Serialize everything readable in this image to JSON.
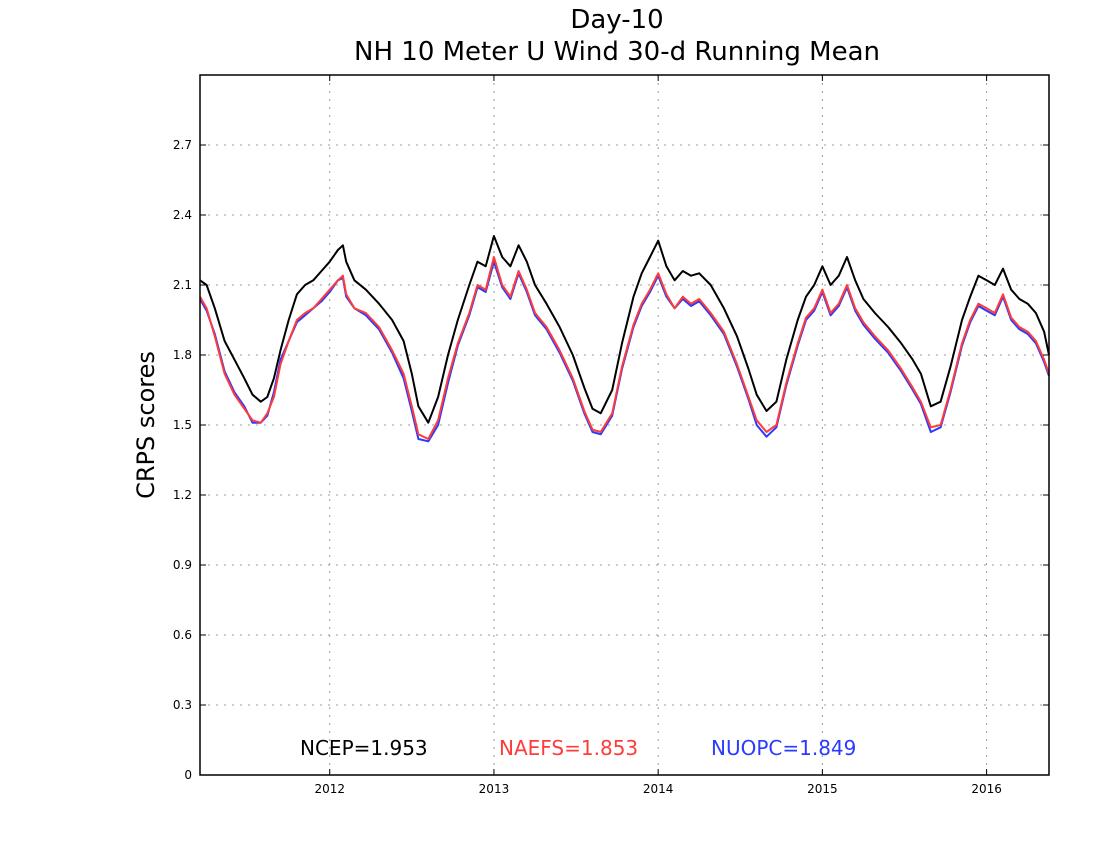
{
  "chart_data": {
    "type": "line",
    "title": "Day-10",
    "subtitle": "NH 10 Meter U Wind 30-d Running Mean",
    "xlabel": "",
    "ylabel": "CRPS scores",
    "xlim": [
      2011.21,
      2016.38
    ],
    "ylim": [
      0,
      3.0
    ],
    "yticks": [
      0,
      0.3,
      0.6,
      0.9,
      1.2,
      1.5,
      1.8,
      2.1,
      2.4,
      2.7
    ],
    "ytick_labels": [
      "0",
      "0.3",
      "0.6",
      "0.9",
      "1.2",
      "1.5",
      "1.8",
      "2.1",
      "2.4",
      "2.7"
    ],
    "xticks": [
      2012,
      2013,
      2014,
      2015,
      2016
    ],
    "xtick_labels": [
      "2012",
      "2013",
      "2014",
      "2015",
      "2016"
    ],
    "grid": true,
    "legend_position": "bottom-inside",
    "series": [
      {
        "name": "NCEP",
        "legend": "NCEP=1.953",
        "color": "#000000",
        "x": [
          2011.21,
          2011.25,
          2011.3,
          2011.36,
          2011.42,
          2011.48,
          2011.53,
          2011.58,
          2011.62,
          2011.66,
          2011.7,
          2011.75,
          2011.8,
          2011.85,
          2011.9,
          2011.95,
          2012.0,
          2012.05,
          2012.08,
          2012.1,
          2012.15,
          2012.22,
          2012.3,
          2012.38,
          2012.45,
          2012.5,
          2012.54,
          2012.6,
          2012.66,
          2012.72,
          2012.78,
          2012.85,
          2012.9,
          2012.95,
          2013.0,
          2013.05,
          2013.1,
          2013.15,
          2013.2,
          2013.25,
          2013.32,
          2013.4,
          2013.48,
          2013.55,
          2013.6,
          2013.65,
          2013.72,
          2013.78,
          2013.85,
          2013.9,
          2013.95,
          2014.0,
          2014.05,
          2014.1,
          2014.15,
          2014.2,
          2014.25,
          2014.32,
          2014.4,
          2014.48,
          2014.55,
          2014.6,
          2014.66,
          2014.72,
          2014.78,
          2014.85,
          2014.9,
          2014.95,
          2015.0,
          2015.05,
          2015.1,
          2015.15,
          2015.2,
          2015.25,
          2015.32,
          2015.4,
          2015.48,
          2015.55,
          2015.6,
          2015.66,
          2015.72,
          2015.78,
          2015.85,
          2015.9,
          2015.95,
          2016.0,
          2016.05,
          2016.1,
          2016.15,
          2016.2,
          2016.25,
          2016.3,
          2016.35,
          2016.38
        ],
        "values": [
          2.12,
          2.1,
          2.0,
          1.86,
          1.78,
          1.7,
          1.63,
          1.6,
          1.62,
          1.7,
          1.82,
          1.95,
          2.06,
          2.1,
          2.12,
          2.16,
          2.2,
          2.25,
          2.27,
          2.2,
          2.12,
          2.08,
          2.02,
          1.95,
          1.86,
          1.72,
          1.58,
          1.51,
          1.62,
          1.8,
          1.95,
          2.1,
          2.2,
          2.18,
          2.31,
          2.22,
          2.18,
          2.27,
          2.2,
          2.1,
          2.02,
          1.92,
          1.8,
          1.66,
          1.57,
          1.55,
          1.65,
          1.85,
          2.05,
          2.15,
          2.22,
          2.29,
          2.18,
          2.12,
          2.16,
          2.14,
          2.15,
          2.1,
          2.0,
          1.88,
          1.74,
          1.63,
          1.56,
          1.6,
          1.78,
          1.95,
          2.05,
          2.1,
          2.18,
          2.1,
          2.14,
          2.22,
          2.12,
          2.04,
          1.98,
          1.92,
          1.85,
          1.78,
          1.72,
          1.58,
          1.6,
          1.75,
          1.95,
          2.05,
          2.14,
          2.12,
          2.1,
          2.17,
          2.08,
          2.04,
          2.02,
          1.98,
          1.9,
          1.8
        ]
      },
      {
        "name": "NAEFS",
        "legend": "NAEFS=1.853",
        "color": "#ff3b3b",
        "x": [
          2011.21,
          2011.25,
          2011.3,
          2011.36,
          2011.42,
          2011.48,
          2011.53,
          2011.58,
          2011.62,
          2011.66,
          2011.7,
          2011.75,
          2011.8,
          2011.85,
          2011.9,
          2011.95,
          2012.0,
          2012.05,
          2012.08,
          2012.1,
          2012.15,
          2012.22,
          2012.3,
          2012.38,
          2012.45,
          2012.5,
          2012.54,
          2012.6,
          2012.66,
          2012.72,
          2012.78,
          2012.85,
          2012.9,
          2012.95,
          2013.0,
          2013.05,
          2013.1,
          2013.15,
          2013.2,
          2013.25,
          2013.32,
          2013.4,
          2013.48,
          2013.55,
          2013.6,
          2013.65,
          2013.72,
          2013.78,
          2013.85,
          2013.9,
          2013.95,
          2014.0,
          2014.05,
          2014.1,
          2014.15,
          2014.2,
          2014.25,
          2014.32,
          2014.4,
          2014.48,
          2014.55,
          2014.6,
          2014.66,
          2014.72,
          2014.78,
          2014.85,
          2014.9,
          2014.95,
          2015.0,
          2015.05,
          2015.1,
          2015.15,
          2015.2,
          2015.25,
          2015.32,
          2015.4,
          2015.48,
          2015.55,
          2015.6,
          2015.66,
          2015.72,
          2015.78,
          2015.85,
          2015.9,
          2015.95,
          2016.0,
          2016.05,
          2016.1,
          2016.15,
          2016.2,
          2016.25,
          2016.3,
          2016.35,
          2016.38
        ],
        "values": [
          2.05,
          2.0,
          1.88,
          1.72,
          1.63,
          1.57,
          1.52,
          1.51,
          1.55,
          1.62,
          1.76,
          1.86,
          1.95,
          1.98,
          2.0,
          2.04,
          2.08,
          2.12,
          2.14,
          2.06,
          2.0,
          1.98,
          1.92,
          1.82,
          1.72,
          1.58,
          1.46,
          1.44,
          1.52,
          1.7,
          1.85,
          1.98,
          2.1,
          2.08,
          2.22,
          2.1,
          2.05,
          2.16,
          2.08,
          1.98,
          1.92,
          1.82,
          1.7,
          1.56,
          1.48,
          1.47,
          1.55,
          1.75,
          1.93,
          2.02,
          2.08,
          2.15,
          2.06,
          2.0,
          2.05,
          2.02,
          2.04,
          1.98,
          1.9,
          1.76,
          1.62,
          1.52,
          1.47,
          1.5,
          1.68,
          1.85,
          1.96,
          2.0,
          2.08,
          1.98,
          2.02,
          2.1,
          2.0,
          1.94,
          1.88,
          1.82,
          1.74,
          1.66,
          1.6,
          1.49,
          1.5,
          1.65,
          1.85,
          1.95,
          2.02,
          2.0,
          1.98,
          2.06,
          1.96,
          1.92,
          1.9,
          1.86,
          1.78,
          1.72
        ]
      },
      {
        "name": "NUOPC",
        "legend": "NUOPC=1.849",
        "color": "#2a3bff",
        "x": [
          2011.21,
          2011.25,
          2011.3,
          2011.36,
          2011.42,
          2011.48,
          2011.53,
          2011.58,
          2011.62,
          2011.66,
          2011.7,
          2011.75,
          2011.8,
          2011.85,
          2011.9,
          2011.95,
          2012.0,
          2012.05,
          2012.08,
          2012.1,
          2012.15,
          2012.22,
          2012.3,
          2012.38,
          2012.45,
          2012.5,
          2012.54,
          2012.6,
          2012.66,
          2012.72,
          2012.78,
          2012.85,
          2012.9,
          2012.95,
          2013.0,
          2013.05,
          2013.1,
          2013.15,
          2013.2,
          2013.25,
          2013.32,
          2013.4,
          2013.48,
          2013.55,
          2013.6,
          2013.65,
          2013.72,
          2013.78,
          2013.85,
          2013.9,
          2013.95,
          2014.0,
          2014.05,
          2014.1,
          2014.15,
          2014.2,
          2014.25,
          2014.32,
          2014.4,
          2014.48,
          2014.55,
          2014.6,
          2014.66,
          2014.72,
          2014.78,
          2014.85,
          2014.9,
          2014.95,
          2015.0,
          2015.05,
          2015.1,
          2015.15,
          2015.2,
          2015.25,
          2015.32,
          2015.4,
          2015.48,
          2015.55,
          2015.6,
          2015.66,
          2015.72,
          2015.78,
          2015.85,
          2015.9,
          2015.95,
          2016.0,
          2016.05,
          2016.1,
          2016.15,
          2016.2,
          2016.25,
          2016.3,
          2016.35,
          2016.38
        ],
        "values": [
          2.04,
          1.99,
          1.89,
          1.73,
          1.64,
          1.58,
          1.51,
          1.51,
          1.54,
          1.64,
          1.78,
          1.86,
          1.94,
          1.97,
          2.0,
          2.03,
          2.07,
          2.12,
          2.13,
          2.05,
          2.0,
          1.97,
          1.91,
          1.81,
          1.7,
          1.56,
          1.44,
          1.43,
          1.5,
          1.68,
          1.84,
          1.97,
          2.09,
          2.07,
          2.2,
          2.09,
          2.04,
          2.15,
          2.07,
          1.97,
          1.91,
          1.81,
          1.69,
          1.55,
          1.47,
          1.46,
          1.54,
          1.74,
          1.92,
          2.01,
          2.07,
          2.14,
          2.05,
          2.0,
          2.04,
          2.01,
          2.03,
          1.97,
          1.89,
          1.75,
          1.61,
          1.5,
          1.45,
          1.49,
          1.67,
          1.84,
          1.95,
          1.99,
          2.07,
          1.97,
          2.01,
          2.09,
          1.99,
          1.93,
          1.87,
          1.81,
          1.73,
          1.65,
          1.59,
          1.47,
          1.49,
          1.64,
          1.84,
          1.94,
          2.01,
          1.99,
          1.97,
          2.05,
          1.95,
          1.91,
          1.89,
          1.85,
          1.77,
          1.71
        ]
      }
    ]
  }
}
